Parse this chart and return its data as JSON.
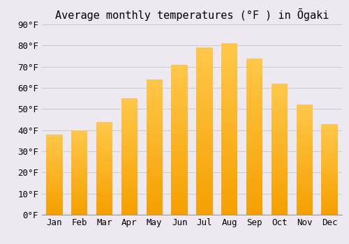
{
  "title": "Average monthly temperatures (°F ) in Ōgaki",
  "months": [
    "Jan",
    "Feb",
    "Mar",
    "Apr",
    "May",
    "Jun",
    "Jul",
    "Aug",
    "Sep",
    "Oct",
    "Nov",
    "Dec"
  ],
  "values": [
    38,
    40,
    44,
    55,
    64,
    71,
    79,
    81,
    74,
    62,
    52,
    43
  ],
  "bar_color_light": "#FFC84A",
  "bar_color_dark": "#F5A000",
  "background_color": "#EEE8F0",
  "plot_bg_color": "#EEE8F0",
  "grid_color": "#cccccc",
  "ylim": [
    0,
    90
  ],
  "yticks": [
    0,
    10,
    20,
    30,
    40,
    50,
    60,
    70,
    80,
    90
  ],
  "ytick_labels": [
    "0°F",
    "10°F",
    "20°F",
    "30°F",
    "40°F",
    "50°F",
    "60°F",
    "70°F",
    "80°F",
    "90°F"
  ],
  "title_fontsize": 11,
  "tick_fontsize": 9,
  "bar_width": 0.65,
  "figsize": [
    5.0,
    3.5
  ],
  "dpi": 100
}
